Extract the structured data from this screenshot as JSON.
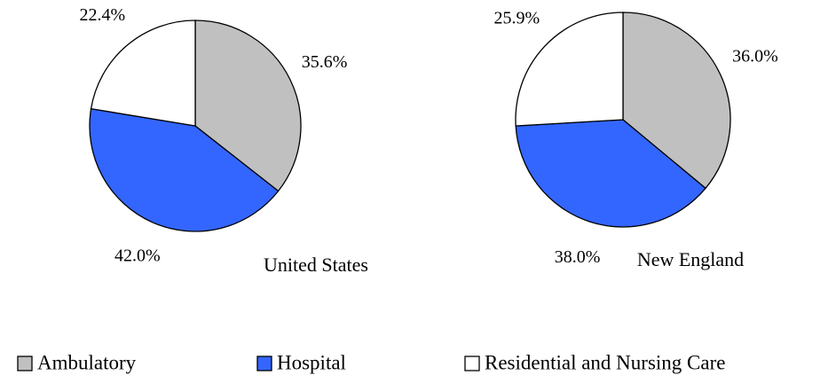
{
  "chart_data": [
    {
      "type": "pie",
      "title": "United States",
      "categories": [
        "Ambulatory",
        "Hospital",
        "Residential and Nursing Care"
      ],
      "colors": [
        "#c0c0c0",
        "#3366ff",
        "#ffffff"
      ],
      "values": [
        35.6,
        42.0,
        22.4
      ],
      "value_labels": [
        "35.6%",
        "42.0%",
        "22.4%"
      ]
    },
    {
      "type": "pie",
      "title": "New England",
      "categories": [
        "Ambulatory",
        "Hospital",
        "Residential and Nursing Care"
      ],
      "colors": [
        "#c0c0c0",
        "#3366ff",
        "#ffffff"
      ],
      "values": [
        36.0,
        38.0,
        25.9
      ],
      "value_labels": [
        "36.0%",
        "38.0%",
        "25.9%"
      ]
    }
  ]
}
